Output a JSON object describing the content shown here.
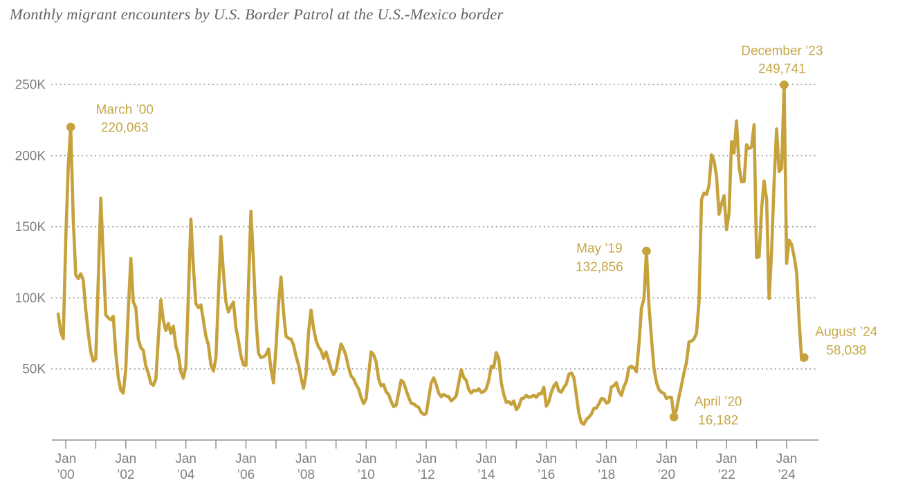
{
  "title": "Monthly migrant encounters by U.S. Border Patrol at the U.S.-Mexico border",
  "colors": {
    "line": "#C6A23C",
    "marker": "#C6A23C",
    "annotation_text": "#C5A747",
    "title_text": "#636363",
    "axis_text": "#7F7F7F",
    "grid": "#9B9B9B",
    "axis_line": "#8F8F8F"
  },
  "chart_data": {
    "type": "line",
    "title": "Monthly migrant encounters by U.S. Border Patrol at the U.S.-Mexico border",
    "xlabel": "",
    "ylabel": "",
    "unit": "thousands of encounters per month",
    "months_start": "1999-10",
    "months_end": "2024-08",
    "ylim": [
      0,
      260
    ],
    "grid": "dotted-horizontal",
    "legend": "none",
    "y_ticks": [
      {
        "v": 50,
        "label": "50K"
      },
      {
        "v": 100,
        "label": "100K"
      },
      {
        "v": 150,
        "label": "150K"
      },
      {
        "v": 200,
        "label": "200K"
      },
      {
        "v": 250,
        "label": "250K"
      }
    ],
    "x_tick_year_offsets": [
      0,
      1,
      2,
      3,
      4,
      5,
      6,
      7,
      8,
      9,
      10,
      11,
      12,
      13,
      14,
      15,
      16,
      17,
      18,
      19,
      20,
      21,
      22,
      23,
      24
    ],
    "x_labels": [
      {
        "offset": 0,
        "line1": "Jan",
        "line2": "’00"
      },
      {
        "offset": 2,
        "line1": "Jan",
        "line2": "’02"
      },
      {
        "offset": 4,
        "line1": "Jan",
        "line2": "’04"
      },
      {
        "offset": 6,
        "line1": "Jan",
        "line2": "’06"
      },
      {
        "offset": 8,
        "line1": "Jan",
        "line2": "’08"
      },
      {
        "offset": 10,
        "line1": "Jan",
        "line2": "’10"
      },
      {
        "offset": 12,
        "line1": "Jan",
        "line2": "’12"
      },
      {
        "offset": 14,
        "line1": "Jan",
        "line2": "’14"
      },
      {
        "offset": 16,
        "line1": "Jan",
        "line2": "’16"
      },
      {
        "offset": 18,
        "line1": "Jan",
        "line2": "’18"
      },
      {
        "offset": 20,
        "line1": "Jan",
        "line2": "’20"
      },
      {
        "offset": 22,
        "line1": "Jan",
        "line2": "’22"
      },
      {
        "offset": 24,
        "line1": "Jan",
        "line2": "’24"
      }
    ],
    "values": [
      88.6,
      76.1,
      71.3,
      140,
      192,
      220.063,
      155,
      116,
      113.5,
      117,
      112.5,
      92,
      75,
      62,
      55.5,
      57,
      112,
      170,
      128,
      88,
      86,
      84.5,
      87,
      61,
      44,
      35,
      33,
      50,
      92,
      127.7,
      97,
      93,
      71,
      65,
      63,
      52,
      47,
      40,
      38.5,
      43,
      72,
      98.5,
      84,
      77,
      82,
      75,
      80,
      66,
      60,
      48,
      43.5,
      52,
      102,
      155.3,
      122,
      96,
      93,
      95,
      84,
      73,
      67,
      53,
      48.5,
      58,
      102,
      143,
      118,
      97,
      90,
      94,
      97,
      79,
      70,
      59,
      53,
      52.4,
      108,
      160.8,
      125,
      85,
      61,
      58,
      58.5,
      60,
      64,
      50,
      40.3,
      65,
      95,
      114.5,
      90,
      73,
      71.5,
      71,
      67,
      59,
      53,
      44,
      36.4,
      46,
      76,
      91.3,
      78.6,
      70,
      65.5,
      63,
      57.5,
      62,
      56,
      50,
      46,
      49,
      59,
      67.5,
      64,
      59,
      51,
      45,
      43,
      39,
      36,
      30,
      25.7,
      29,
      46,
      62,
      60,
      55,
      43,
      38,
      39,
      34,
      32,
      27,
      23.5,
      24.5,
      33,
      42,
      40.5,
      35,
      30,
      26,
      25.5,
      24,
      23,
      19.5,
      18,
      18.5,
      29,
      40,
      43.7,
      39,
      33,
      30.5,
      32,
      31,
      30.5,
      27.5,
      29,
      31,
      40,
      49.5,
      44,
      42,
      35.5,
      33,
      35,
      34.5,
      36,
      33.5,
      34,
      36,
      42,
      52,
      51,
      61.5,
      57.5,
      40.5,
      32,
      26.5,
      27,
      25,
      27.5,
      21.5,
      23.5,
      29,
      29.5,
      31.5,
      30,
      30.5,
      31.5,
      30,
      32.5,
      32.5,
      37,
      23.8,
      27,
      33.5,
      38,
      40.3,
      34.5,
      33.7,
      37,
      39.5,
      46.2,
      47.2,
      43.9,
      31.6,
      18.8,
      12.2,
      11.1,
      14.5,
      16.1,
      18.2,
      22.3,
      22.5,
      25.5,
      29.1,
      28.9,
      26,
      26.7,
      37.4,
      38.2,
      40.3,
      34.1,
      31.3,
      37.5,
      41.5,
      51,
      51.9,
      50.8,
      48,
      66.9,
      92.8,
      99.3,
      132.856,
      94.9,
      72,
      50.7,
      40.5,
      35.4,
      33.5,
      32.9,
      29.2,
      30.1,
      30,
      16.182,
      21.5,
      30.3,
      38.4,
      47.3,
      54.8,
      69,
      69.5,
      71.1,
      75.3,
      97.6,
      169.2,
      173.7,
      172.8,
      178.8,
      200.7,
      196.3,
      185.5,
      158.8,
      166.1,
      171.8,
      147.9,
      159.5,
      209.9,
      201.8,
      224.4,
      191.9,
      181.6,
      181.8,
      207.6,
      204.9,
      206.2,
      221.7,
      128.4,
      128.9,
      162.3,
      182.1,
      169.2,
      99.5,
      132.7,
      181.1,
      218.8,
      188.8,
      191.1,
      249.741,
      124.2,
      140.6,
      137.5,
      128.9,
      117.9,
      83.5,
      56.4,
      58.038
    ],
    "annotations": [
      {
        "label": "March ’00",
        "value_label": "220,063",
        "index": 5,
        "value": 220.063,
        "dx": 78,
        "dy1": -19,
        "dy2": 7
      },
      {
        "label": "May ’19",
        "value_label": "132,856",
        "index": 235,
        "value": 132.856,
        "dx": -68,
        "dy1": 2,
        "dy2": 29
      },
      {
        "label": "April ’20",
        "value_label": "16,182",
        "index": 246,
        "value": 16.182,
        "dx": 64,
        "dy1": -16,
        "dy2": 11
      },
      {
        "label": "December ’23",
        "value_label": "249,741",
        "index": 290,
        "value": 249.741,
        "dx": -3,
        "dy1": -43,
        "dy2": -17
      },
      {
        "label": "August ’24",
        "value_label": "58,038",
        "index": 298,
        "value": 58.038,
        "dx": 61,
        "dy1": -31,
        "dy2": -4
      }
    ]
  }
}
